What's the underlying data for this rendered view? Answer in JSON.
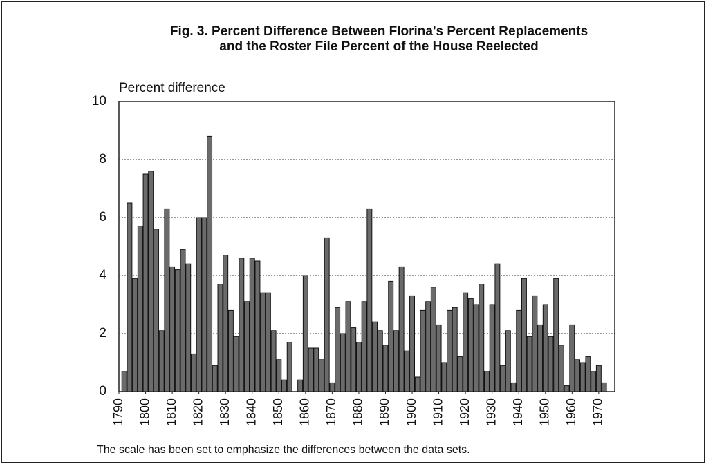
{
  "chart_data": {
    "type": "bar",
    "title": "Fig. 3.  Percent Difference Between Florina's Percent Replacements",
    "subtitle": "and the Roster File Percent of the House Reelected",
    "y_label": "Percent difference",
    "note": "The scale has been set to emphasize the differences between the data sets.",
    "color": "#6b6b6b",
    "grid": true,
    "x": [
      1792,
      1794,
      1796,
      1798,
      1800,
      1802,
      1804,
      1806,
      1808,
      1810,
      1812,
      1814,
      1816,
      1818,
      1820,
      1822,
      1824,
      1826,
      1828,
      1830,
      1832,
      1834,
      1836,
      1838,
      1840,
      1842,
      1844,
      1846,
      1848,
      1850,
      1852,
      1854,
      1856,
      1858,
      1860,
      1862,
      1864,
      1866,
      1868,
      1870,
      1872,
      1874,
      1876,
      1878,
      1880,
      1882,
      1884,
      1886,
      1888,
      1890,
      1892,
      1894,
      1896,
      1898,
      1900,
      1902,
      1904,
      1906,
      1908,
      1910,
      1912,
      1914,
      1916,
      1918,
      1920,
      1922,
      1924,
      1926,
      1928,
      1930,
      1932,
      1934,
      1936,
      1938,
      1940,
      1942,
      1944,
      1946,
      1948,
      1950,
      1952,
      1954,
      1956,
      1958,
      1960,
      1962,
      1964,
      1966,
      1968,
      1970,
      1972
    ],
    "values": [
      0.7,
      6.5,
      3.9,
      5.7,
      7.5,
      7.6,
      5.6,
      2.1,
      6.3,
      4.3,
      4.2,
      4.9,
      4.4,
      1.3,
      6.0,
      6.0,
      8.8,
      0.9,
      3.7,
      4.7,
      2.8,
      1.9,
      4.6,
      3.1,
      4.6,
      4.5,
      3.4,
      3.4,
      2.1,
      1.1,
      0.4,
      1.7,
      0,
      0.4,
      4.0,
      1.5,
      1.5,
      1.1,
      5.3,
      0.3,
      2.9,
      2.0,
      3.1,
      2.2,
      1.7,
      3.1,
      6.3,
      2.4,
      2.1,
      1.6,
      3.8,
      2.1,
      4.3,
      1.4,
      3.3,
      0.5,
      2.8,
      3.1,
      3.6,
      2.3,
      1.0,
      2.8,
      2.9,
      1.2,
      3.4,
      3.2,
      3.0,
      3.7,
      0.7,
      3.0,
      4.4,
      0.9,
      2.1,
      0.3,
      2.8,
      3.9,
      1.9,
      3.3,
      2.3,
      3.0,
      1.9,
      3.9,
      1.6,
      0.2,
      2.3,
      1.1,
      1.0,
      1.2,
      0.7,
      0.9,
      0.3
    ],
    "xlim": [
      1790,
      1976
    ],
    "xticks": [
      1790,
      1800,
      1810,
      1820,
      1830,
      1840,
      1850,
      1860,
      1870,
      1880,
      1890,
      1900,
      1910,
      1920,
      1930,
      1940,
      1950,
      1960,
      1970
    ],
    "ylim": [
      0,
      10
    ],
    "yticks": [
      0,
      2,
      4,
      6,
      8,
      10
    ]
  }
}
